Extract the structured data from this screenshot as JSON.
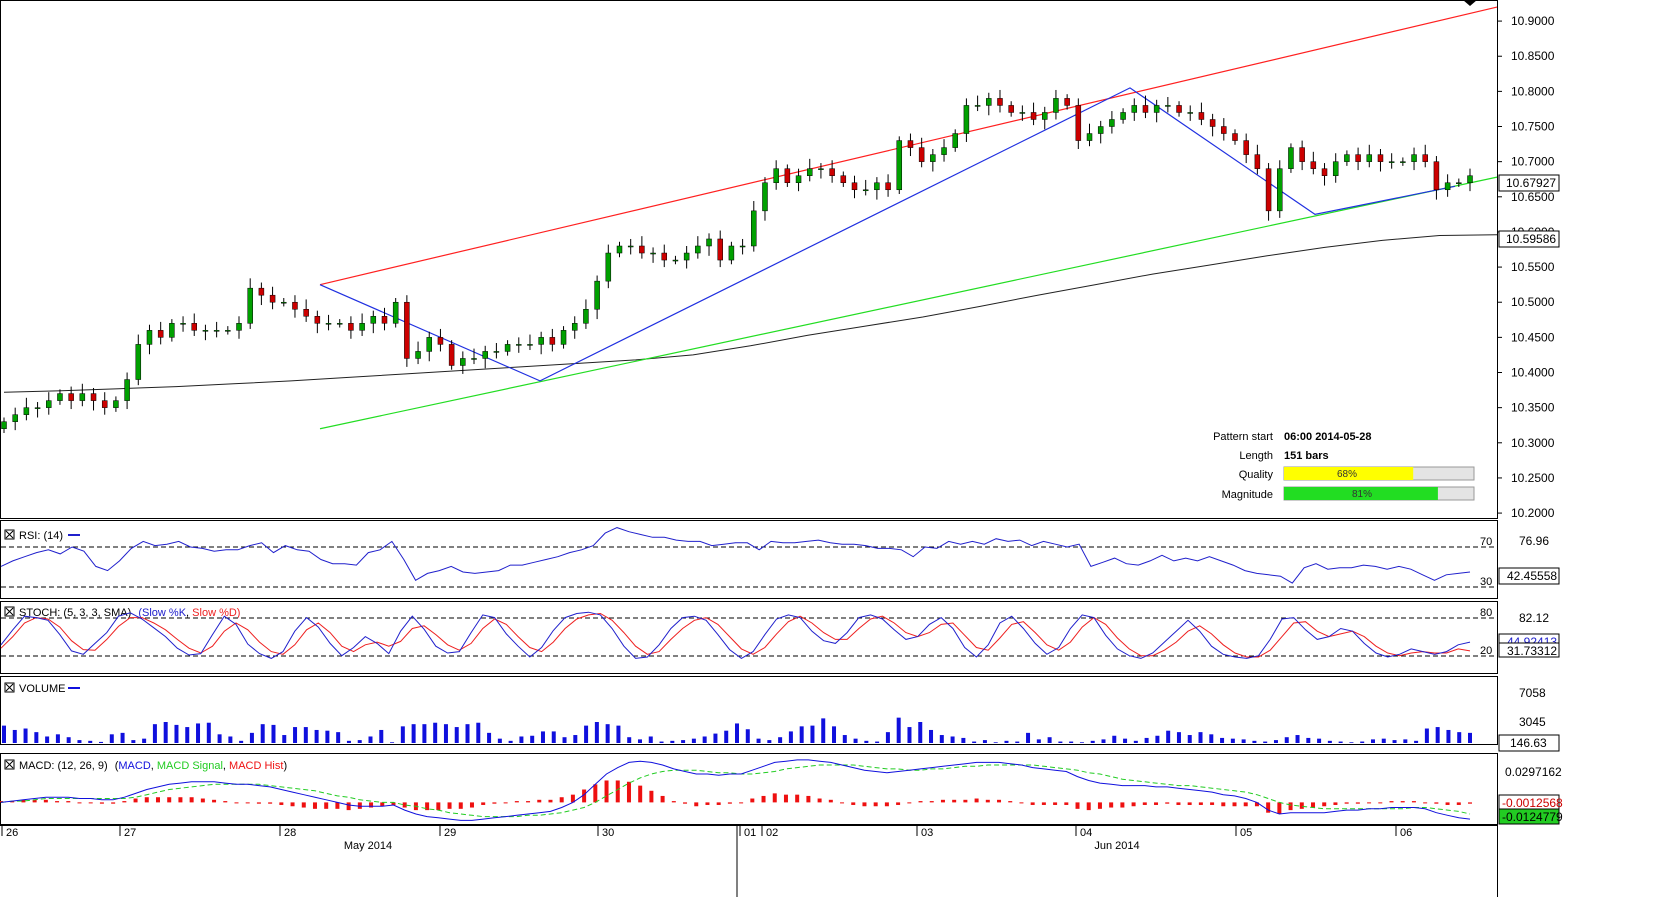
{
  "chart_data": {
    "type": "candlestick",
    "instrument_price": {
      "y_ticks": [
        "10.9000",
        "10.8500",
        "10.8000",
        "10.7500",
        "10.7000",
        "10.6500",
        "10.6000",
        "10.5500",
        "10.5000",
        "10.4500",
        "10.4000",
        "10.3500",
        "10.3000",
        "10.2500",
        "10.2000"
      ],
      "y_tick_values": [
        10.9,
        10.85,
        10.8,
        10.75,
        10.7,
        10.65,
        10.6,
        10.55,
        10.5,
        10.45,
        10.4,
        10.35,
        10.3,
        10.25,
        10.2
      ],
      "ylim": [
        10.193,
        10.93
      ],
      "current_price": "10.67927",
      "ma_value": "10.59586",
      "ma_line": [
        10.372,
        10.374,
        10.377,
        10.38,
        10.384,
        10.388,
        10.393,
        10.398,
        10.403,
        10.408,
        10.413,
        10.418,
        10.425,
        10.438,
        10.453,
        10.466,
        10.479,
        10.494,
        10.51,
        10.525,
        10.54,
        10.553,
        10.566,
        10.578,
        10.588,
        10.595,
        10.596
      ],
      "resistance_line": {
        "from": [
          0,
          10.525
        ],
        "to": [
          150,
          10.92
        ]
      },
      "support_line": {
        "from": [
          0,
          10.32
        ],
        "to": [
          150,
          10.678
        ]
      },
      "zigzag": [
        [
          0,
          10.525
        ],
        [
          22,
          10.388
        ],
        [
          82,
          10.805
        ],
        [
          100,
          10.625
        ],
        [
          113,
          10.665
        ]
      ],
      "candles_close": [
        10.33,
        10.34,
        10.35,
        10.35,
        10.36,
        10.37,
        10.36,
        10.37,
        10.36,
        10.35,
        10.36,
        10.39,
        10.44,
        10.46,
        10.45,
        10.47,
        10.47,
        10.46,
        10.46,
        10.46,
        10.46,
        10.47,
        10.52,
        10.51,
        10.5,
        10.5,
        10.49,
        10.48,
        10.47,
        10.47,
        10.47,
        10.46,
        10.47,
        10.48,
        10.47,
        10.5,
        10.42,
        10.43,
        10.45,
        10.44,
        10.41,
        10.42,
        10.42,
        10.43,
        10.43,
        10.44,
        10.44,
        10.44,
        10.45,
        10.44,
        10.46,
        10.47,
        10.49,
        10.53,
        10.57,
        10.58,
        10.58,
        10.57,
        10.57,
        10.56,
        10.56,
        10.57,
        10.58,
        10.59,
        10.56,
        10.58,
        10.58,
        10.63,
        10.67,
        10.69,
        10.67,
        10.68,
        10.69,
        10.69,
        10.68,
        10.67,
        10.66,
        10.66,
        10.67,
        10.66,
        10.73,
        10.72,
        10.7,
        10.71,
        10.72,
        10.74,
        10.78,
        10.78,
        10.79,
        10.78,
        10.77,
        10.77,
        10.76,
        10.77,
        10.79,
        10.78,
        10.73,
        10.74,
        10.75,
        10.76,
        10.77,
        10.78,
        10.77,
        10.78,
        10.78,
        10.77,
        10.77,
        10.76,
        10.75,
        10.74,
        10.73,
        10.71,
        10.69,
        10.63,
        10.69,
        10.72,
        10.7,
        10.69,
        10.68,
        10.7,
        10.71,
        10.7,
        10.71,
        10.7,
        10.7,
        10.7,
        10.71,
        10.7,
        10.66,
        10.67,
        10.67,
        10.68
      ]
    },
    "pattern_info": {
      "pattern_start_label": "Pattern start",
      "pattern_start_value": "06:00 2014-05-28",
      "length_label": "Length",
      "length_value": "151 bars",
      "quality_label": "Quality",
      "quality_value": 68,
      "quality_text": "68%",
      "magnitude_label": "Magnitude",
      "magnitude_value": 81,
      "magnitude_text": "81%"
    },
    "rsi": {
      "title": "RSI: (14)",
      "level_high": "70",
      "level_low": "30",
      "top_value": "76.96",
      "current_value": "42.45558",
      "values": [
        48,
        52,
        55,
        58,
        60,
        57,
        62,
        59,
        48,
        45,
        52,
        61,
        66,
        63,
        64,
        66,
        62,
        61,
        59,
        60,
        60,
        63,
        65,
        58,
        63,
        60,
        59,
        53,
        50,
        50,
        49,
        58,
        60,
        66,
        53,
        38,
        43,
        45,
        48,
        44,
        43,
        44,
        45,
        49,
        49,
        51,
        53,
        55,
        58,
        60,
        63,
        72,
        76,
        73,
        71,
        69,
        69,
        67,
        66,
        66,
        63,
        64,
        65,
        65,
        60,
        66,
        65,
        65,
        66,
        67,
        65,
        64,
        64,
        63,
        61,
        61,
        60,
        55,
        62,
        61,
        66,
        64,
        66,
        64,
        68,
        66,
        67,
        63,
        66,
        64,
        62,
        64,
        48,
        51,
        54,
        50,
        49,
        52,
        56,
        52,
        54,
        52,
        55,
        52,
        49,
        45,
        43,
        42,
        41,
        36,
        47,
        50,
        46,
        47,
        47,
        49,
        48,
        46,
        48,
        46,
        42,
        38,
        42,
        43,
        44
      ],
      "ylim": [
        26,
        80
      ]
    },
    "stoch": {
      "title": "STOCH: (5, 3, 3, SMA)",
      "legend_k": "Slow %K",
      "legend_d": "Slow %D",
      "level_high": "80",
      "level_low": "20",
      "top_value": "82.12",
      "k_value": "44.92413",
      "d_value": "31.73312",
      "k": [
        40,
        62,
        82,
        80,
        76,
        55,
        31,
        26,
        42,
        58,
        82,
        87,
        78,
        65,
        52,
        35,
        25,
        27,
        55,
        82,
        70,
        41,
        27,
        20,
        30,
        60,
        80,
        66,
        42,
        24,
        36,
        52,
        42,
        27,
        60,
        82,
        63,
        38,
        28,
        30,
        58,
        84,
        80,
        56,
        38,
        22,
        36,
        61,
        80,
        86,
        88,
        84,
        64,
        38,
        20,
        22,
        40,
        64,
        80,
        82,
        76,
        55,
        33,
        20,
        30,
        55,
        78,
        84,
        80,
        60,
        46,
        42,
        58,
        80,
        84,
        78,
        62,
        48,
        52,
        70,
        80,
        64,
        36,
        22,
        40,
        72,
        82,
        64,
        42,
        26,
        36,
        64,
        84,
        80,
        54,
        34,
        24,
        20,
        28,
        44,
        60,
        76,
        60,
        38,
        26,
        22,
        20,
        24,
        48,
        78,
        80,
        62,
        48,
        52,
        64,
        60,
        42,
        28,
        22,
        26,
        34,
        30,
        26,
        30,
        40,
        44
      ],
      "d": [
        35,
        52,
        72,
        80,
        78,
        66,
        46,
        33,
        32,
        48,
        67,
        80,
        80,
        72,
        62,
        48,
        35,
        28,
        38,
        60,
        72,
        62,
        44,
        30,
        26,
        40,
        62,
        72,
        58,
        38,
        30,
        40,
        44,
        38,
        45,
        64,
        68,
        55,
        40,
        32,
        42,
        64,
        78,
        70,
        52,
        36,
        30,
        44,
        64,
        78,
        84,
        86,
        76,
        58,
        38,
        26,
        30,
        48,
        64,
        76,
        80,
        70,
        52,
        34,
        26,
        36,
        56,
        74,
        82,
        72,
        58,
        48,
        48,
        64,
        78,
        82,
        72,
        58,
        52,
        58,
        70,
        72,
        54,
        36,
        32,
        50,
        70,
        74,
        58,
        40,
        32,
        44,
        66,
        80,
        70,
        50,
        34,
        24,
        24,
        32,
        44,
        60,
        68,
        56,
        40,
        28,
        22,
        22,
        32,
        52,
        72,
        74,
        60,
        52,
        56,
        60,
        52,
        38,
        28,
        24,
        28,
        30,
        28,
        28,
        34,
        31
      ],
      "ylim": [
        0,
        100
      ]
    },
    "volume": {
      "title": "VOLUME",
      "top_value": "7058",
      "mid_value": "3045",
      "current_value": "146.63",
      "ymax": 8700,
      "values": [
        2400,
        1800,
        2000,
        1500,
        900,
        1200,
        800,
        400,
        300,
        150,
        1200,
        1400,
        400,
        600,
        2600,
        2900,
        2500,
        2200,
        2700,
        2800,
        1200,
        900,
        300,
        1400,
        2600,
        2500,
        1100,
        2200,
        2200,
        1800,
        1700,
        1500,
        300,
        400,
        900,
        1800,
        100,
        2300,
        2600,
        2600,
        2800,
        2600,
        2200,
        2600,
        2800,
        1400,
        600,
        300,
        900,
        1000,
        1600,
        1600,
        800,
        1100,
        2400,
        2900,
        2600,
        2400,
        800,
        500,
        900,
        200,
        300,
        400,
        600,
        900,
        1300,
        1700,
        2700,
        1900,
        600,
        400,
        800,
        1600,
        2300,
        2400,
        3400,
        2300,
        1100,
        600,
        300,
        200,
        1500,
        3500,
        2200,
        2900,
        1800,
        1100,
        900,
        700,
        200,
        400,
        100,
        300,
        200,
        1400,
        500,
        800,
        200,
        200,
        100,
        300,
        500,
        1000,
        600,
        300,
        700,
        1000,
        1700,
        1500,
        1100,
        1500,
        1200,
        700,
        600,
        500,
        300,
        200,
        400,
        800,
        1100,
        700,
        600,
        300,
        200,
        100,
        200,
        500,
        600,
        400,
        500,
        300,
        2000,
        2200,
        1800,
        1500,
        1400
      ]
    },
    "macd": {
      "title": "MACD: (12, 26, 9)",
      "legend_macd": "MACD",
      "legend_signal": "MACD Signal",
      "legend_hist": "MACD Hist",
      "top_value": "0.0297162",
      "hist_value": "-0.0012568",
      "macd_value": "-0.0124779",
      "ylim": [
        -0.016,
        0.036
      ],
      "macd": [
        0.0,
        0.001,
        0.002,
        0.003,
        0.004,
        0.004,
        0.004,
        0.003,
        0.003,
        0.002,
        0.002,
        0.004,
        0.007,
        0.01,
        0.012,
        0.014,
        0.015,
        0.016,
        0.016,
        0.016,
        0.015,
        0.014,
        0.014,
        0.013,
        0.012,
        0.01,
        0.008,
        0.006,
        0.004,
        0.002,
        0.0,
        -0.002,
        -0.003,
        -0.003,
        -0.003,
        -0.002,
        -0.006,
        -0.009,
        -0.011,
        -0.012,
        -0.013,
        -0.014,
        -0.014,
        -0.013,
        -0.012,
        -0.011,
        -0.01,
        -0.009,
        -0.008,
        -0.007,
        -0.004,
        0.0,
        0.006,
        0.014,
        0.022,
        0.027,
        0.031,
        0.032,
        0.031,
        0.029,
        0.026,
        0.024,
        0.022,
        0.022,
        0.021,
        0.022,
        0.022,
        0.025,
        0.028,
        0.031,
        0.032,
        0.033,
        0.033,
        0.032,
        0.031,
        0.029,
        0.027,
        0.025,
        0.024,
        0.023,
        0.024,
        0.025,
        0.026,
        0.027,
        0.028,
        0.029,
        0.03,
        0.031,
        0.031,
        0.031,
        0.03,
        0.029,
        0.027,
        0.026,
        0.025,
        0.024,
        0.02,
        0.017,
        0.015,
        0.014,
        0.013,
        0.013,
        0.013,
        0.012,
        0.012,
        0.011,
        0.01,
        0.009,
        0.008,
        0.006,
        0.005,
        0.003,
        0.0,
        -0.006,
        -0.009,
        -0.008,
        -0.008,
        -0.008,
        -0.008,
        -0.007,
        -0.006,
        -0.006,
        -0.005,
        -0.005,
        -0.004,
        -0.004,
        -0.004,
        -0.005,
        -0.008,
        -0.01,
        -0.012,
        -0.013
      ],
      "signal": [
        0.0,
        0.001,
        0.001,
        0.002,
        0.003,
        0.003,
        0.003,
        0.003,
        0.003,
        0.003,
        0.003,
        0.003,
        0.004,
        0.006,
        0.008,
        0.01,
        0.011,
        0.012,
        0.013,
        0.014,
        0.014,
        0.014,
        0.014,
        0.014,
        0.013,
        0.012,
        0.011,
        0.01,
        0.009,
        0.007,
        0.005,
        0.004,
        0.002,
        0.001,
        0.0,
        0.0,
        -0.002,
        -0.003,
        -0.005,
        -0.006,
        -0.008,
        -0.009,
        -0.01,
        -0.011,
        -0.011,
        -0.011,
        -0.011,
        -0.01,
        -0.01,
        -0.009,
        -0.008,
        -0.006,
        -0.004,
        0.0,
        0.005,
        0.01,
        0.015,
        0.019,
        0.022,
        0.024,
        0.025,
        0.025,
        0.025,
        0.024,
        0.023,
        0.023,
        0.022,
        0.022,
        0.023,
        0.024,
        0.026,
        0.027,
        0.028,
        0.029,
        0.029,
        0.029,
        0.029,
        0.028,
        0.027,
        0.026,
        0.026,
        0.025,
        0.025,
        0.026,
        0.026,
        0.027,
        0.028,
        0.028,
        0.029,
        0.029,
        0.029,
        0.029,
        0.029,
        0.028,
        0.027,
        0.026,
        0.025,
        0.023,
        0.022,
        0.02,
        0.018,
        0.017,
        0.016,
        0.015,
        0.014,
        0.013,
        0.013,
        0.012,
        0.011,
        0.01,
        0.009,
        0.008,
        0.006,
        0.003,
        0.0,
        -0.002,
        -0.003,
        -0.004,
        -0.005,
        -0.005,
        -0.005,
        -0.005,
        -0.005,
        -0.005,
        -0.005,
        -0.005,
        -0.004,
        -0.004,
        -0.005,
        -0.006,
        -0.007,
        -0.009
      ],
      "hist": [
        0.001,
        0.001,
        0.002,
        0.002,
        0.002,
        0.001,
        0.001,
        0.0,
        0.0,
        -0.001,
        -0.001,
        0.001,
        0.003,
        0.004,
        0.004,
        0.004,
        0.004,
        0.004,
        0.003,
        0.002,
        0.001,
        0.0,
        0.0,
        -0.001,
        -0.001,
        -0.002,
        -0.003,
        -0.004,
        -0.005,
        -0.005,
        -0.005,
        -0.006,
        -0.005,
        -0.004,
        -0.003,
        -0.002,
        -0.004,
        -0.006,
        -0.006,
        -0.006,
        -0.005,
        -0.005,
        -0.004,
        -0.002,
        -0.001,
        0.0,
        0.001,
        0.001,
        0.002,
        0.002,
        0.004,
        0.006,
        0.01,
        0.014,
        0.017,
        0.017,
        0.016,
        0.013,
        0.009,
        0.005,
        0.001,
        -0.001,
        -0.003,
        -0.002,
        -0.002,
        -0.001,
        0.0,
        0.003,
        0.005,
        0.007,
        0.006,
        0.006,
        0.005,
        0.003,
        0.002,
        0.0,
        -0.002,
        -0.003,
        -0.003,
        -0.003,
        -0.002,
        0.0,
        0.001,
        0.001,
        0.002,
        0.002,
        0.002,
        0.003,
        0.002,
        0.002,
        0.001,
        0.0,
        -0.002,
        -0.002,
        -0.002,
        -0.002,
        -0.005,
        -0.006,
        -0.005,
        -0.004,
        -0.004,
        -0.003,
        -0.002,
        -0.002,
        -0.001,
        -0.002,
        -0.002,
        -0.002,
        -0.002,
        -0.003,
        -0.003,
        -0.003,
        -0.003,
        -0.008,
        -0.009,
        -0.006,
        -0.005,
        -0.004,
        -0.003,
        -0.002,
        -0.001,
        -0.001,
        0.0,
        0.0,
        0.001,
        0.001,
        0.001,
        0.0,
        -0.001,
        -0.002,
        -0.002,
        -0.001
      ]
    },
    "x_axis": {
      "day_labels": [
        "26",
        "27",
        "28",
        "29",
        "30",
        "01",
        "02",
        "03",
        "04",
        "05",
        "06"
      ],
      "month_labels": [
        "May 2014",
        "Jun 2014"
      ]
    }
  },
  "colors": {
    "candle_up": "#00a000",
    "candle_down": "#cc0000",
    "resistance": "#ff2020",
    "support": "#22dd22",
    "zigzag": "#2030e0",
    "ma": "#222222",
    "rsi": "#2020cc",
    "stoch_k": "#2020cc",
    "stoch_d": "#ee2020",
    "volume": "#1010dd",
    "macd": "#1010dd",
    "signal": "#22cc22",
    "hist": "#ee1010",
    "quality_bar": "#ffff00",
    "magnitude_bar": "#22dd22"
  }
}
